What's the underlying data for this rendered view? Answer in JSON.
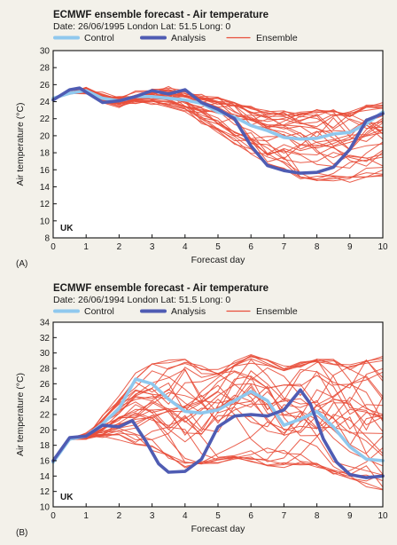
{
  "chart_data": [
    {
      "type": "line",
      "title": "ECMWF ensemble forecast - Air temperature",
      "subtitle": "Date: 26/06/1995 London Lat: 51.5 Long: 0",
      "panel_label": "(A)",
      "region_label": "UK",
      "xlabel": "Forecast day",
      "ylabel": "Air temperature (°C)",
      "xlim": [
        0,
        10
      ],
      "ylim": [
        8,
        30
      ],
      "xticks": [
        0,
        1,
        2,
        3,
        4,
        5,
        6,
        7,
        8,
        9,
        10
      ],
      "yticks": [
        8,
        10,
        12,
        14,
        16,
        18,
        20,
        22,
        24,
        26,
        28,
        30
      ],
      "grid": false,
      "legend": {
        "placement": "top",
        "entries": [
          "Control",
          "Analysis",
          "Ensemble"
        ]
      },
      "colors": {
        "Control": "#8fc8ee",
        "Analysis": "#4f5cb3",
        "Ensemble": "#e84e3a"
      },
      "ensemble_members": 32,
      "ensemble_envelope": {
        "x": [
          0,
          0.5,
          1,
          1.5,
          2,
          2.5,
          3,
          3.5,
          4,
          4.5,
          5,
          5.5,
          6,
          6.5,
          7,
          7.5,
          8,
          8.5,
          9,
          9.5,
          10
        ],
        "low": [
          24.0,
          24.6,
          24.8,
          23.7,
          23.6,
          23.8,
          23.8,
          23.4,
          22.8,
          21.4,
          20.0,
          18.8,
          17.5,
          16.2,
          15.2,
          14.4,
          14.0,
          14.0,
          13.8,
          14.2,
          14.4
        ],
        "high": [
          24.6,
          25.6,
          25.8,
          24.9,
          24.6,
          25.0,
          25.4,
          25.6,
          25.2,
          24.6,
          24.4,
          24.0,
          23.4,
          23.0,
          23.0,
          23.2,
          23.4,
          23.2,
          23.0,
          23.6,
          23.8
        ]
      },
      "series": [
        {
          "name": "Control",
          "x": [
            0,
            0.5,
            1,
            1.5,
            2,
            2.5,
            3,
            3.5,
            4,
            4.5,
            5,
            5.5,
            6,
            6.5,
            7,
            7.5,
            8,
            8.5,
            9,
            9.5,
            10
          ],
          "values": [
            24.4,
            25.0,
            25.3,
            24.4,
            24.1,
            24.6,
            24.6,
            24.4,
            24.2,
            23.8,
            22.8,
            22.2,
            21.2,
            20.6,
            19.8,
            19.6,
            19.7,
            20.2,
            20.4,
            21.4,
            22.8
          ]
        },
        {
          "name": "Analysis",
          "x": [
            0,
            0.5,
            0.8,
            1.5,
            2,
            2.5,
            3,
            3.5,
            4,
            4.5,
            5,
            5.5,
            6,
            6.5,
            7,
            7.5,
            8,
            8.5,
            9,
            9.5,
            10
          ],
          "values": [
            24.2,
            25.4,
            25.6,
            23.9,
            24.1,
            24.6,
            25.3,
            24.9,
            25.4,
            23.9,
            23.1,
            22.0,
            18.8,
            16.5,
            15.9,
            15.6,
            15.7,
            16.3,
            18.4,
            21.8,
            22.6
          ]
        }
      ]
    },
    {
      "type": "line",
      "title": "ECMWF ensemble forecast - Air temperature",
      "subtitle": "Date: 26/06/1994 London Lat: 51.5 Long: 0",
      "panel_label": "(B)",
      "region_label": "UK",
      "xlabel": "Forecast day",
      "ylabel": "Air temperature (°C)",
      "xlim": [
        0,
        10
      ],
      "ylim": [
        10,
        34
      ],
      "xticks": [
        0,
        1,
        2,
        3,
        4,
        5,
        6,
        7,
        8,
        9,
        10
      ],
      "yticks": [
        10,
        12,
        14,
        16,
        18,
        20,
        22,
        24,
        26,
        28,
        30,
        32,
        34
      ],
      "grid": false,
      "legend": {
        "placement": "top",
        "entries": [
          "Control",
          "Analysis",
          "Ensemble"
        ]
      },
      "colors": {
        "Control": "#8fc8ee",
        "Analysis": "#4f5cb3",
        "Ensemble": "#e84e3a"
      },
      "ensemble_members": 32,
      "ensemble_envelope": {
        "x": [
          0,
          0.5,
          1,
          1.5,
          2,
          2.5,
          3,
          3.5,
          4,
          4.5,
          5,
          5.5,
          6,
          6.5,
          7,
          7.5,
          8,
          8.5,
          9,
          9.5,
          10
        ],
        "low": [
          15.8,
          18.0,
          18.2,
          18.6,
          18.4,
          16.8,
          16.2,
          15.0,
          14.2,
          14.4,
          14.8,
          15.0,
          14.6,
          14.2,
          14.4,
          14.6,
          14.0,
          13.4,
          13.2,
          12.4,
          11.8
        ],
        "high": [
          16.0,
          19.4,
          19.8,
          21.8,
          24.4,
          27.4,
          28.6,
          29.6,
          30.2,
          29.0,
          28.4,
          29.4,
          30.2,
          29.6,
          29.2,
          29.8,
          30.4,
          30.4,
          30.0,
          31.0,
          31.8
        ]
      },
      "series": [
        {
          "name": "Control",
          "x": [
            0,
            0.5,
            1,
            1.5,
            2,
            2.5,
            3,
            3.5,
            4,
            4.5,
            5,
            5.5,
            6,
            6.5,
            7,
            7.5,
            8,
            8.5,
            9,
            9.5,
            10
          ],
          "values": [
            15.8,
            18.8,
            19.2,
            20.8,
            22.8,
            26.6,
            26.0,
            24.0,
            22.4,
            22.2,
            22.6,
            23.8,
            25.0,
            23.8,
            20.6,
            21.4,
            22.4,
            20.4,
            17.8,
            16.2,
            16.0
          ]
        },
        {
          "name": "Analysis",
          "x": [
            0,
            0.5,
            1,
            1.5,
            2,
            2.4,
            2.8,
            3.2,
            3.5,
            4,
            4.5,
            5,
            5.5,
            6,
            6.5,
            7,
            7.5,
            7.8,
            8.2,
            8.6,
            9,
            9.5,
            10
          ],
          "values": [
            16.0,
            19.0,
            19.2,
            20.6,
            20.4,
            21.2,
            18.6,
            15.6,
            14.5,
            14.6,
            16.2,
            20.4,
            21.8,
            22.0,
            21.8,
            22.6,
            25.2,
            23.4,
            18.8,
            15.8,
            14.2,
            13.8,
            14.0
          ]
        }
      ]
    }
  ]
}
